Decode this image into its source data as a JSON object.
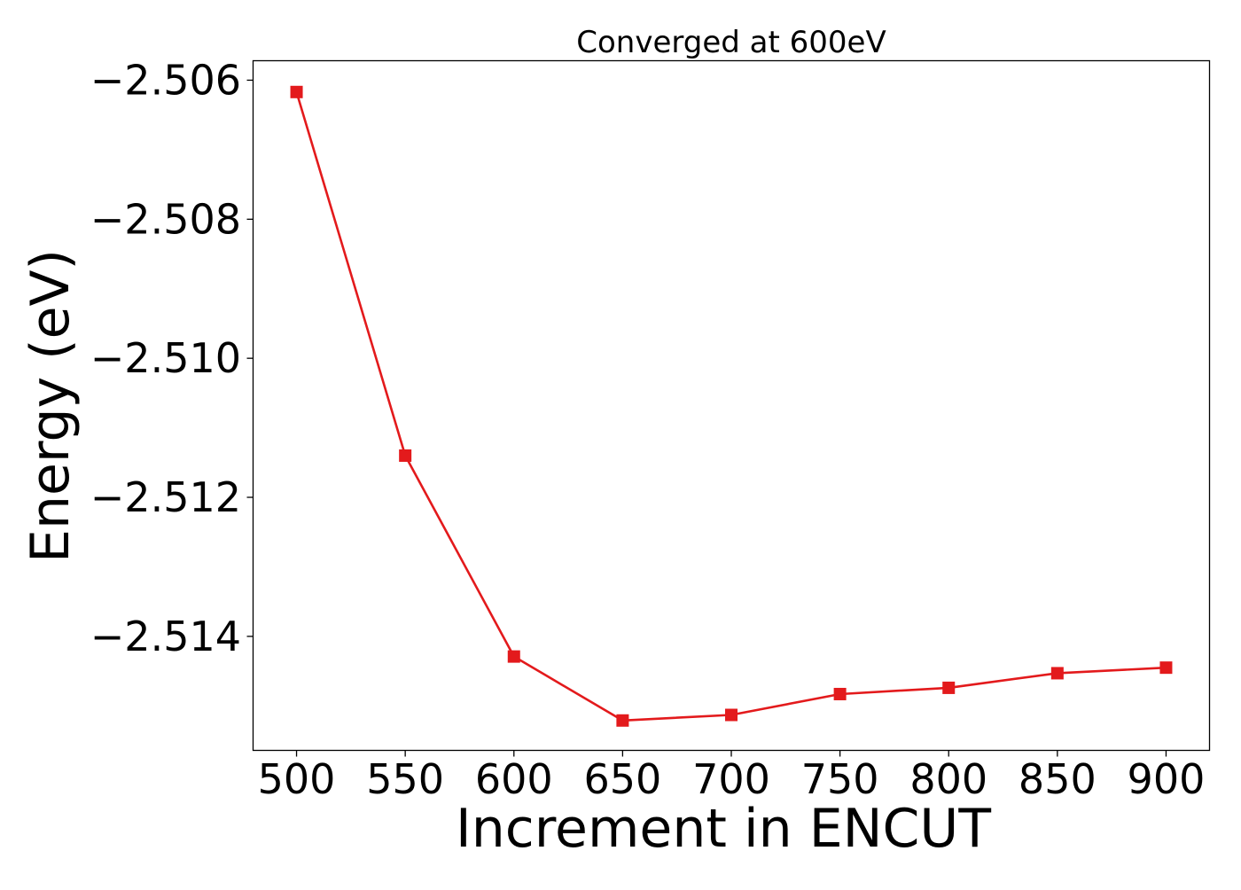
{
  "chart_data": {
    "type": "line",
    "title": "Converged at 600eV",
    "xlabel": "Increment in ENCUT",
    "ylabel": "Energy (eV)",
    "x": [
      500,
      550,
      600,
      650,
      700,
      750,
      800,
      850,
      900
    ],
    "series": [
      {
        "values": [
          -2.50617,
          -2.5114,
          -2.51429,
          -2.51521,
          -2.51513,
          -2.51483,
          -2.51474,
          -2.51453,
          -2.51445
        ],
        "color": "#e31a1c",
        "marker": "square"
      }
    ],
    "xlim": [
      480,
      920
    ],
    "ylim": [
      -2.51564,
      -2.50572
    ],
    "xticks": [
      500,
      550,
      600,
      650,
      700,
      750,
      800,
      850,
      900
    ],
    "xtick_labels": [
      "500",
      "550",
      "600",
      "650",
      "700",
      "750",
      "800",
      "850",
      "900"
    ],
    "yticks": [
      -2.506,
      -2.508,
      -2.51,
      -2.512,
      -2.514
    ],
    "ytick_labels": [
      "−2.506",
      "−2.508",
      "−2.510",
      "−2.512",
      "−2.514"
    ],
    "grid": false,
    "legend": "none"
  }
}
